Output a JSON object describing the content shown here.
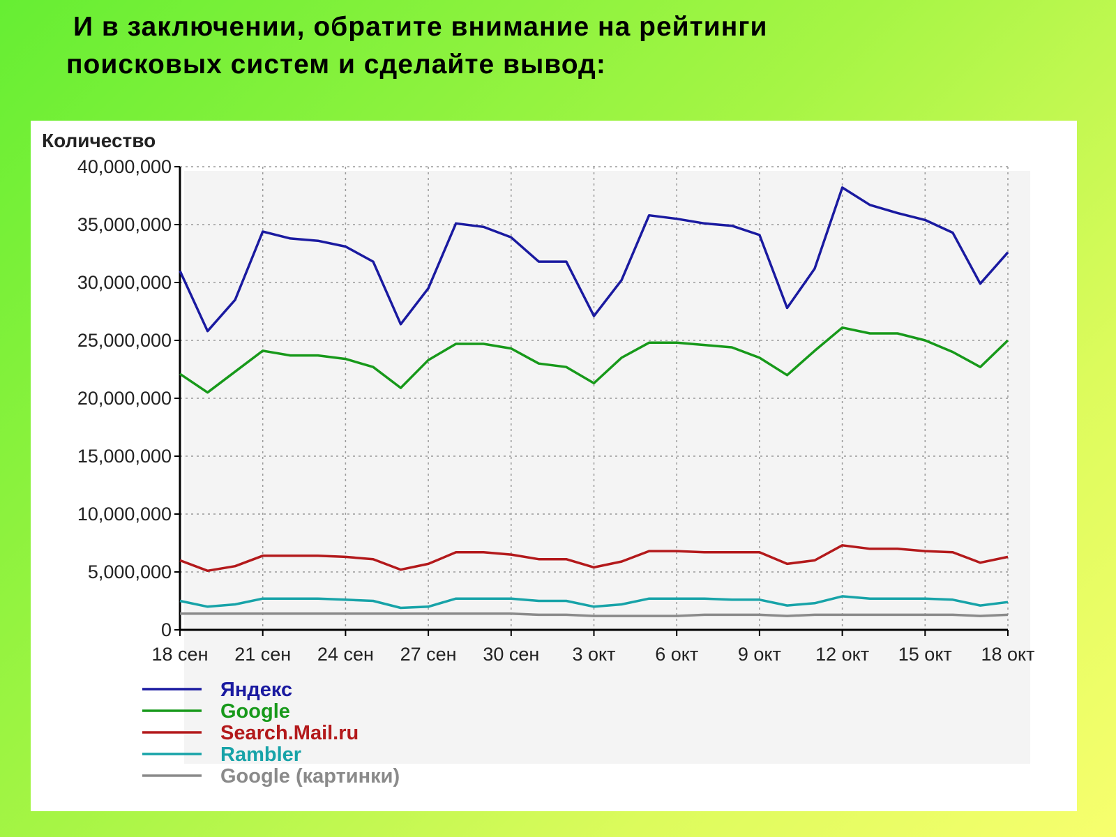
{
  "slide": {
    "title_line1": "И в заключении, обратите внимание на рейтинги",
    "title_line2": "поисковых систем и сделайте вывод:"
  },
  "chart_data": {
    "type": "line",
    "title": "",
    "ylabel": "Количество",
    "xlabel": "",
    "ylim": [
      0,
      40000000
    ],
    "yticks": [
      0,
      5000000,
      10000000,
      15000000,
      20000000,
      25000000,
      30000000,
      35000000,
      40000000
    ],
    "ytick_labels": [
      "0",
      "5,000,000",
      "10,000,000",
      "15,000,000",
      "20,000,000",
      "25,000,000",
      "30,000,000",
      "35,000,000",
      "40,000,000"
    ],
    "x_start": "18 сен",
    "xtick_labels": [
      "18 сен",
      "21 сен",
      "24 сен",
      "27 сен",
      "30 сен",
      "3 окт",
      "6 окт",
      "9 окт",
      "12 окт",
      "15 окт",
      "18 окт"
    ],
    "grid": true,
    "legend_position": "bottom-left",
    "series": [
      {
        "name": "Яндекс",
        "color": "#1a1aa0",
        "values": [
          31000000,
          25800000,
          28500000,
          34400000,
          33800000,
          33600000,
          33100000,
          31800000,
          26400000,
          29500000,
          35100000,
          34800000,
          33900000,
          31800000,
          31800000,
          27100000,
          30200000,
          35800000,
          35500000,
          35100000,
          34900000,
          34100000,
          27800000,
          31200000,
          38200000,
          36700000,
          36000000,
          35400000,
          34300000,
          29900000,
          32600000
        ]
      },
      {
        "name": "Google",
        "color": "#17991a",
        "values": [
          22100000,
          20500000,
          22300000,
          24100000,
          23700000,
          23700000,
          23400000,
          22700000,
          20900000,
          23300000,
          24700000,
          24700000,
          24300000,
          23000000,
          22700000,
          21300000,
          23500000,
          24800000,
          24800000,
          24600000,
          24400000,
          23500000,
          22000000,
          24100000,
          26100000,
          25600000,
          25600000,
          25000000,
          24000000,
          22700000,
          25000000
        ]
      },
      {
        "name": "Search.Mail.ru",
        "color": "#b3191b",
        "values": [
          6000000,
          5100000,
          5500000,
          6400000,
          6400000,
          6400000,
          6300000,
          6100000,
          5200000,
          5700000,
          6700000,
          6700000,
          6500000,
          6100000,
          6100000,
          5400000,
          5900000,
          6800000,
          6800000,
          6700000,
          6700000,
          6700000,
          5700000,
          6000000,
          7300000,
          7000000,
          7000000,
          6800000,
          6700000,
          5800000,
          6300000
        ]
      },
      {
        "name": "Rambler",
        "color": "#17a3a8",
        "values": [
          2500000,
          2000000,
          2200000,
          2700000,
          2700000,
          2700000,
          2600000,
          2500000,
          1900000,
          2000000,
          2700000,
          2700000,
          2700000,
          2500000,
          2500000,
          2000000,
          2200000,
          2700000,
          2700000,
          2700000,
          2600000,
          2600000,
          2100000,
          2300000,
          2900000,
          2700000,
          2700000,
          2700000,
          2600000,
          2100000,
          2400000
        ]
      },
      {
        "name": "Google (картинки)",
        "color": "#8a8a8a",
        "values": [
          1400000,
          1400000,
          1400000,
          1400000,
          1400000,
          1400000,
          1400000,
          1400000,
          1400000,
          1400000,
          1400000,
          1400000,
          1400000,
          1300000,
          1300000,
          1200000,
          1200000,
          1200000,
          1200000,
          1300000,
          1300000,
          1300000,
          1200000,
          1300000,
          1300000,
          1300000,
          1300000,
          1300000,
          1300000,
          1200000,
          1300000
        ]
      }
    ]
  }
}
